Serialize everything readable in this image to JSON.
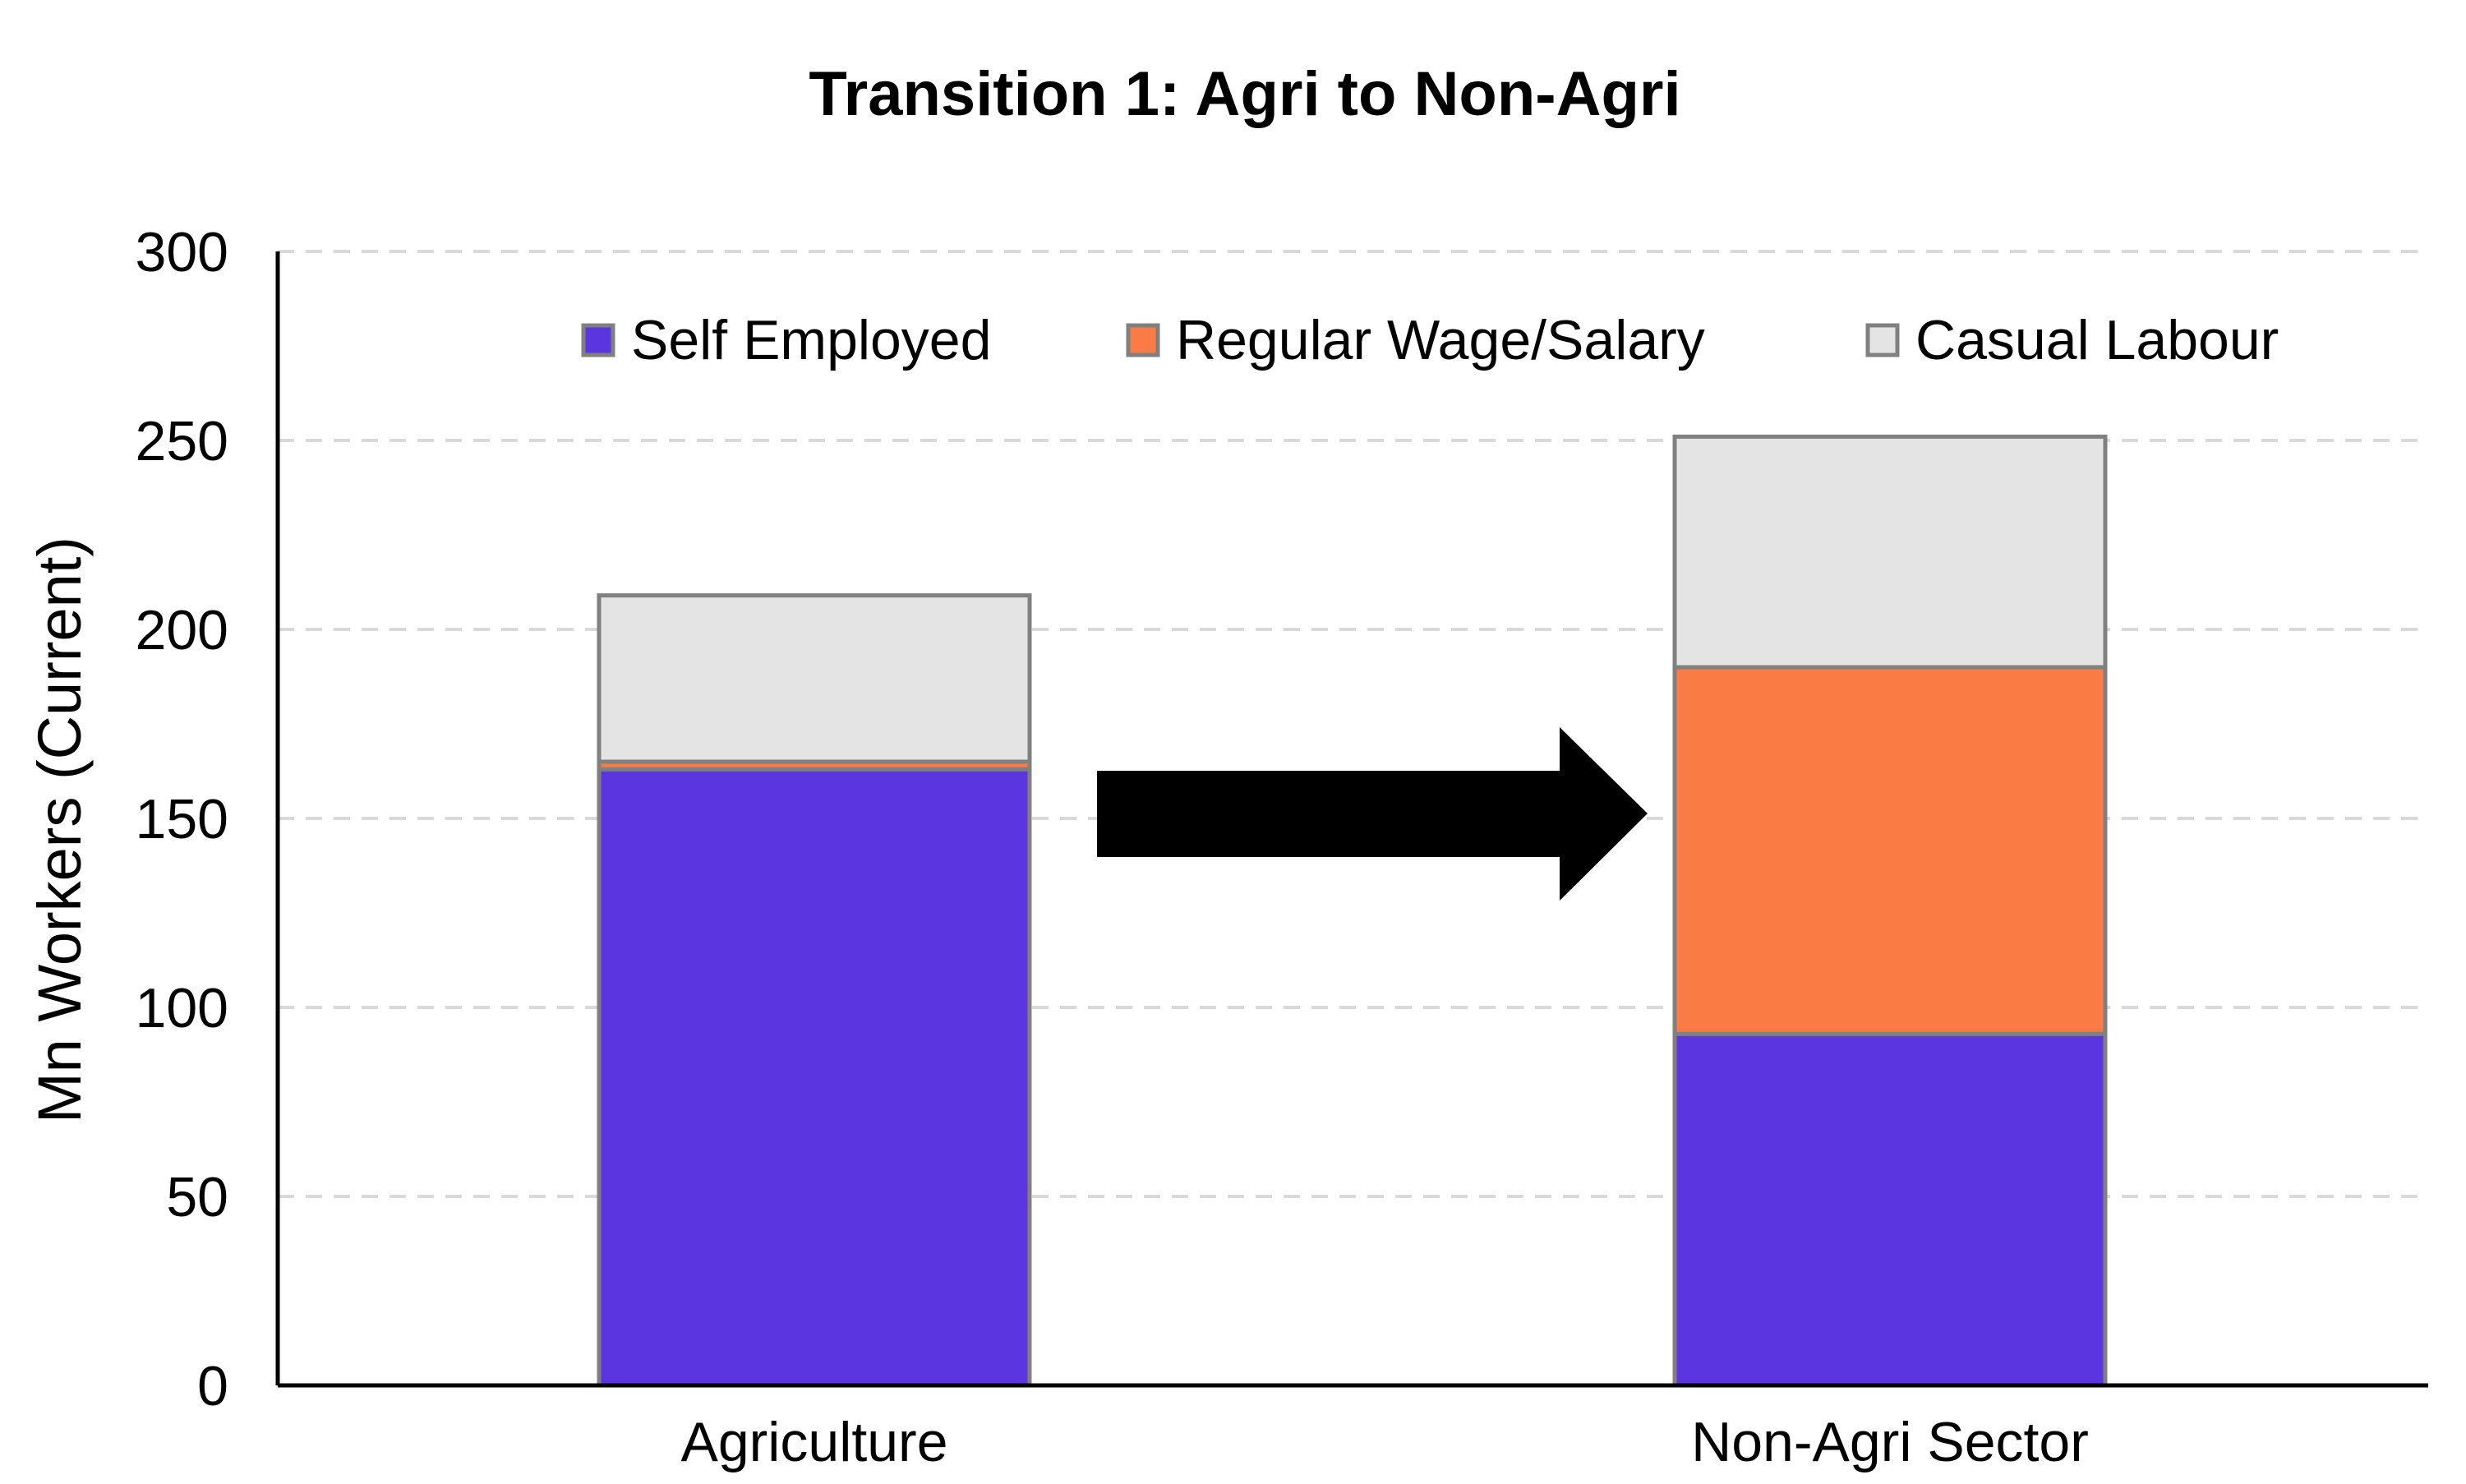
{
  "chart_data": {
    "type": "bar",
    "stacked": true,
    "title": "Transition 1: Agri to Non-Agri",
    "xlabel": "",
    "ylabel": "Mn Workers (Current)",
    "ylim": [
      0,
      300
    ],
    "yticks": [
      0,
      50,
      100,
      150,
      200,
      250,
      300
    ],
    "grid": "horizontal-dashed",
    "legend_position": "top",
    "categories": [
      "Agriculture",
      "Non-Agri Sector"
    ],
    "series": [
      {
        "name": "Self Employed",
        "values": [
          163,
          93
        ],
        "color": "#5b35e0"
      },
      {
        "name": "Regular Wage/Salary",
        "values": [
          2,
          97
        ],
        "color": "#fb7b44"
      },
      {
        "name": "Casual Labour",
        "values": [
          44,
          61
        ],
        "color": "#e4e4e4"
      }
    ],
    "annotation": "arrow-right",
    "colors": {
      "bar_outline": "#808080",
      "axis": "#000000",
      "grid": "#d9d9d9",
      "arrow": "#000000"
    }
  }
}
